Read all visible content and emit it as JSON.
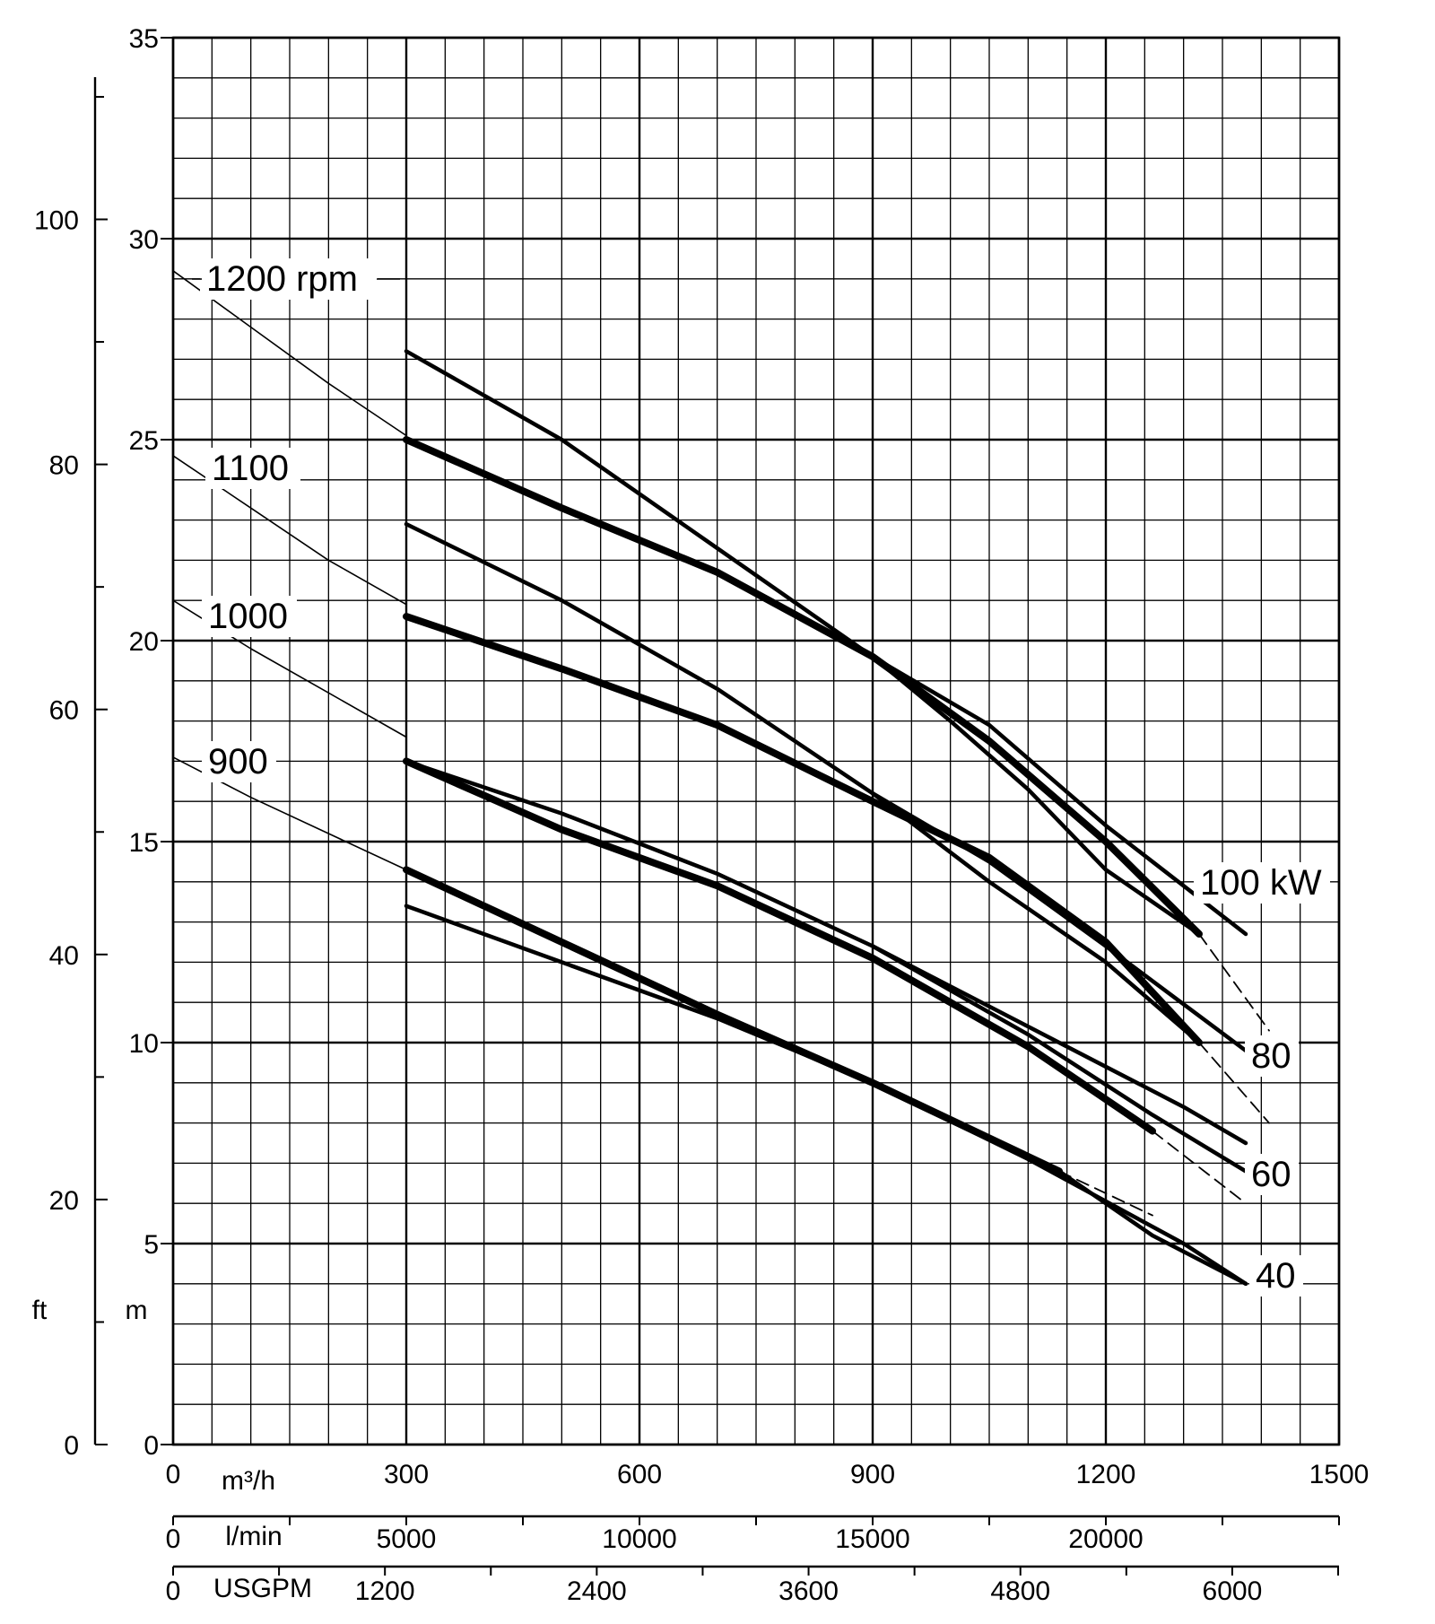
{
  "chart_data": {
    "type": "line",
    "title": "",
    "x_axes": {
      "primary": {
        "unit": "m³/h",
        "ticks": [
          "0",
          "300",
          "600",
          "900",
          "1200",
          "1500"
        ],
        "range": [
          0,
          1500
        ]
      },
      "secondary_lmin": {
        "unit": "l/min",
        "ticks": [
          "0",
          "5000",
          "10000",
          "15000",
          "20000"
        ]
      },
      "secondary_usgpm": {
        "unit": "USGPM",
        "ticks": [
          "0",
          "1200",
          "2400",
          "3600",
          "4800",
          "6000"
        ]
      }
    },
    "y_axes": {
      "primary": {
        "unit": "m",
        "ticks": [
          "0",
          "5",
          "10",
          "15",
          "20",
          "25",
          "30",
          "35"
        ],
        "range": [
          0,
          35
        ]
      },
      "secondary": {
        "unit": "ft",
        "ticks": [
          "0",
          "20",
          "40",
          "60",
          "80",
          "100"
        ]
      }
    },
    "grid": true,
    "rpm_curves": [
      {
        "label": "1200 rpm",
        "points": [
          [
            0,
            29.2
          ],
          [
            100,
            27.8
          ],
          [
            200,
            26.4
          ],
          [
            300,
            25.1
          ]
        ]
      },
      {
        "label": "1100",
        "points": [
          [
            0,
            24.6
          ],
          [
            100,
            23.3
          ],
          [
            200,
            22.0
          ],
          [
            300,
            20.9
          ]
        ]
      },
      {
        "label": "1000",
        "points": [
          [
            0,
            21.0
          ],
          [
            100,
            19.8
          ],
          [
            200,
            18.7
          ],
          [
            300,
            17.6
          ]
        ]
      },
      {
        "label": "900",
        "points": [
          [
            0,
            17.1
          ],
          [
            100,
            16.1
          ],
          [
            200,
            15.2
          ],
          [
            300,
            14.3
          ]
        ]
      }
    ],
    "performance_curves": [
      {
        "points": [
          [
            300,
            27.2
          ],
          [
            500,
            25.0
          ],
          [
            700,
            22.3
          ],
          [
            900,
            19.6
          ],
          [
            1000,
            18.0
          ],
          [
            1100,
            16.3
          ],
          [
            1200,
            14.3
          ],
          [
            1320,
            12.7
          ]
        ],
        "weight": "thin"
      },
      {
        "points": [
          [
            300,
            25.0
          ],
          [
            500,
            23.3
          ],
          [
            700,
            21.7
          ],
          [
            900,
            19.6
          ],
          [
            1050,
            17.5
          ],
          [
            1200,
            15.0
          ],
          [
            1320,
            12.7
          ]
        ],
        "weight": "bold"
      },
      {
        "points": [
          [
            300,
            22.9
          ],
          [
            500,
            21.0
          ],
          [
            700,
            18.8
          ],
          [
            900,
            16.2
          ],
          [
            1050,
            14.0
          ],
          [
            1200,
            12.0
          ],
          [
            1320,
            10.0
          ]
        ],
        "weight": "thin"
      },
      {
        "points": [
          [
            300,
            20.6
          ],
          [
            500,
            19.3
          ],
          [
            700,
            17.9
          ],
          [
            900,
            16.0
          ],
          [
            1050,
            14.6
          ],
          [
            1200,
            12.5
          ],
          [
            1320,
            10.0
          ]
        ],
        "weight": "bold"
      },
      {
        "points": [
          [
            300,
            17.0
          ],
          [
            500,
            15.7
          ],
          [
            700,
            14.2
          ],
          [
            900,
            12.4
          ],
          [
            1100,
            10.4
          ],
          [
            1300,
            8.4
          ],
          [
            1380,
            7.5
          ]
        ],
        "weight": "thin"
      },
      {
        "points": [
          [
            300,
            17.0
          ],
          [
            500,
            15.3
          ],
          [
            700,
            13.9
          ],
          [
            900,
            12.1
          ],
          [
            1100,
            9.9
          ],
          [
            1260,
            7.8
          ]
        ],
        "weight": "bold"
      },
      {
        "points": [
          [
            300,
            13.4
          ],
          [
            500,
            12.0
          ],
          [
            700,
            10.6
          ],
          [
            900,
            9.0
          ],
          [
            1100,
            7.1
          ],
          [
            1300,
            5.0
          ],
          [
            1380,
            4.0
          ]
        ],
        "weight": "thin"
      },
      {
        "points": [
          [
            300,
            14.3
          ],
          [
            500,
            12.5
          ],
          [
            700,
            10.7
          ],
          [
            900,
            9.0
          ],
          [
            1140,
            6.8
          ]
        ],
        "weight": "bold"
      }
    ],
    "power_curves": [
      {
        "label": "100 kW",
        "points": [
          [
            900,
            19.6
          ],
          [
            1050,
            17.9
          ],
          [
            1200,
            15.4
          ],
          [
            1380,
            12.7
          ]
        ]
      },
      {
        "label": "80",
        "points": [
          [
            900,
            16.2
          ],
          [
            1050,
            14.5
          ],
          [
            1200,
            12.4
          ],
          [
            1380,
            9.8
          ]
        ]
      },
      {
        "label": "60",
        "points": [
          [
            900,
            12.4
          ],
          [
            1100,
            10.2
          ],
          [
            1260,
            8.2
          ],
          [
            1380,
            6.8
          ]
        ]
      },
      {
        "label": "40",
        "points": [
          [
            1140,
            6.8
          ],
          [
            1260,
            5.2
          ],
          [
            1380,
            4.0
          ]
        ]
      }
    ],
    "dashed_extensions": [
      {
        "points": [
          [
            1320,
            12.7
          ],
          [
            1410,
            10.3
          ]
        ]
      },
      {
        "points": [
          [
            1320,
            10.0
          ],
          [
            1410,
            8.0
          ]
        ]
      },
      {
        "points": [
          [
            1260,
            7.8
          ],
          [
            1380,
            6.0
          ]
        ]
      },
      {
        "points": [
          [
            1140,
            6.8
          ],
          [
            1260,
            5.7
          ]
        ]
      }
    ]
  }
}
